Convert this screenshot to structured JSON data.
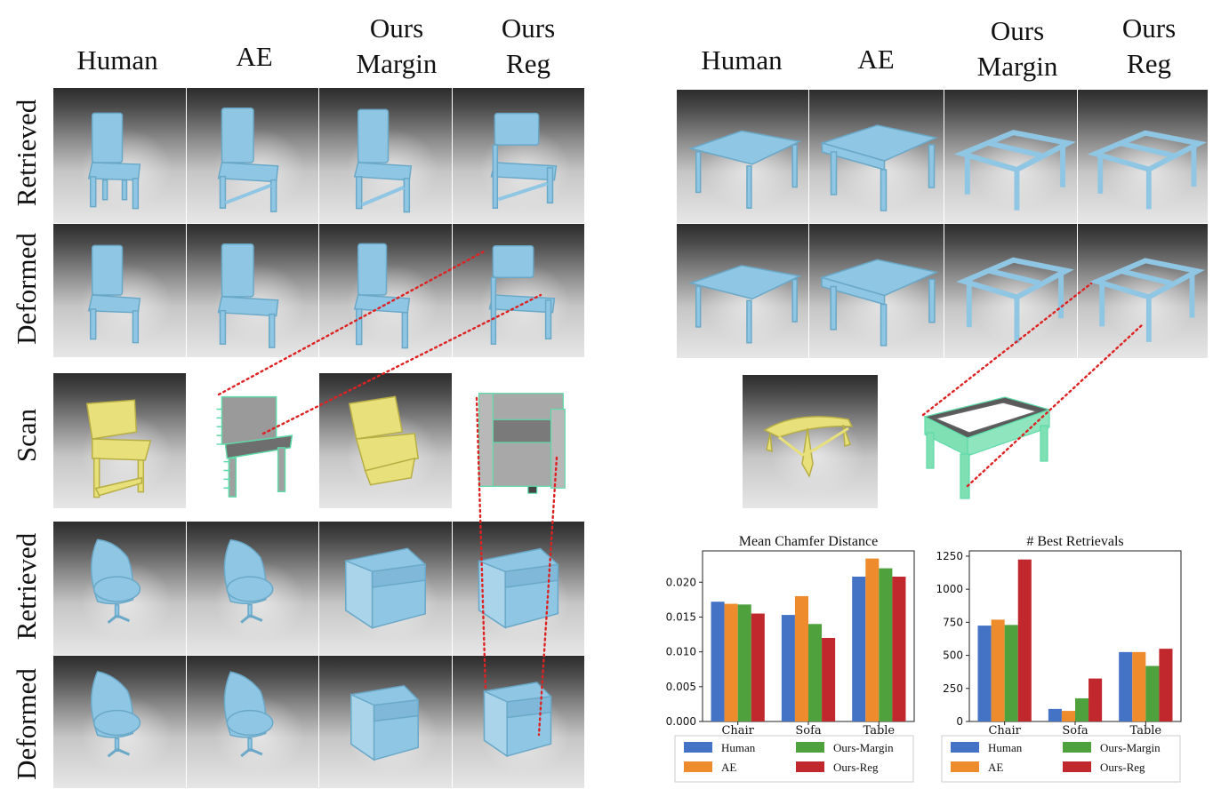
{
  "left_panel": {
    "column_headers": [
      {
        "lines": [
          "Human"
        ]
      },
      {
        "lines": [
          "AE"
        ]
      },
      {
        "lines": [
          "Ours",
          "Margin"
        ]
      },
      {
        "lines": [
          "Ours",
          "Reg"
        ]
      }
    ],
    "row_labels": [
      "Retrieved",
      "Deformed",
      "Scan",
      "Retrieved",
      "Deformed"
    ]
  },
  "right_panel": {
    "column_headers": [
      {
        "lines": [
          "Human"
        ]
      },
      {
        "lines": [
          "AE"
        ]
      },
      {
        "lines": [
          "Ours",
          "Margin"
        ]
      },
      {
        "lines": [
          "Ours",
          "Reg"
        ]
      }
    ]
  },
  "colors": {
    "Human": "#4472c4",
    "AE": "#ed8b2d",
    "Ours-Margin": "#4fa13d",
    "Ours-Reg": "#c0282d",
    "model_blue": "#8fc6e3",
    "scan_yellow": "#e8e07a",
    "scan_green": "#5fd9a8"
  },
  "chart_data": [
    {
      "type": "bar",
      "title": "Mean Chamfer Distance",
      "categories": [
        "Chair",
        "Sofa",
        "Table"
      ],
      "series": [
        {
          "name": "Human",
          "values": [
            0.0172,
            0.0153,
            0.0208
          ]
        },
        {
          "name": "AE",
          "values": [
            0.0169,
            0.018,
            0.0234
          ]
        },
        {
          "name": "Ours-Margin",
          "values": [
            0.0168,
            0.014,
            0.022
          ]
        },
        {
          "name": "Ours-Reg",
          "values": [
            0.0155,
            0.012,
            0.0208
          ]
        }
      ],
      "ylim": [
        0,
        0.0245
      ],
      "yticks": [
        "0.000",
        "0.005",
        "0.010",
        "0.015",
        "0.020"
      ],
      "ytick_values": [
        0,
        0.005,
        0.01,
        0.015,
        0.02
      ],
      "legend": [
        "Human",
        "Ours-Margin",
        "AE",
        "Ours-Reg"
      ],
      "legend_placement": "bottom"
    },
    {
      "type": "bar",
      "title": "# Best Retrievals",
      "categories": [
        "Chair",
        "Sofa",
        "Table"
      ],
      "series": [
        {
          "name": "Human",
          "values": [
            725,
            95,
            525
          ]
        },
        {
          "name": "AE",
          "values": [
            770,
            80,
            525
          ]
        },
        {
          "name": "Ours-Margin",
          "values": [
            730,
            175,
            420
          ]
        },
        {
          "name": "Ours-Reg",
          "values": [
            1225,
            325,
            550
          ]
        }
      ],
      "ylim": [
        0,
        1290
      ],
      "yticks": [
        "0",
        "250",
        "500",
        "750",
        "1000",
        "1250"
      ],
      "ytick_values": [
        0,
        250,
        500,
        750,
        1000,
        1250
      ],
      "legend": [
        "Human",
        "Ours-Margin",
        "AE",
        "Ours-Reg"
      ],
      "legend_placement": "bottom"
    }
  ]
}
